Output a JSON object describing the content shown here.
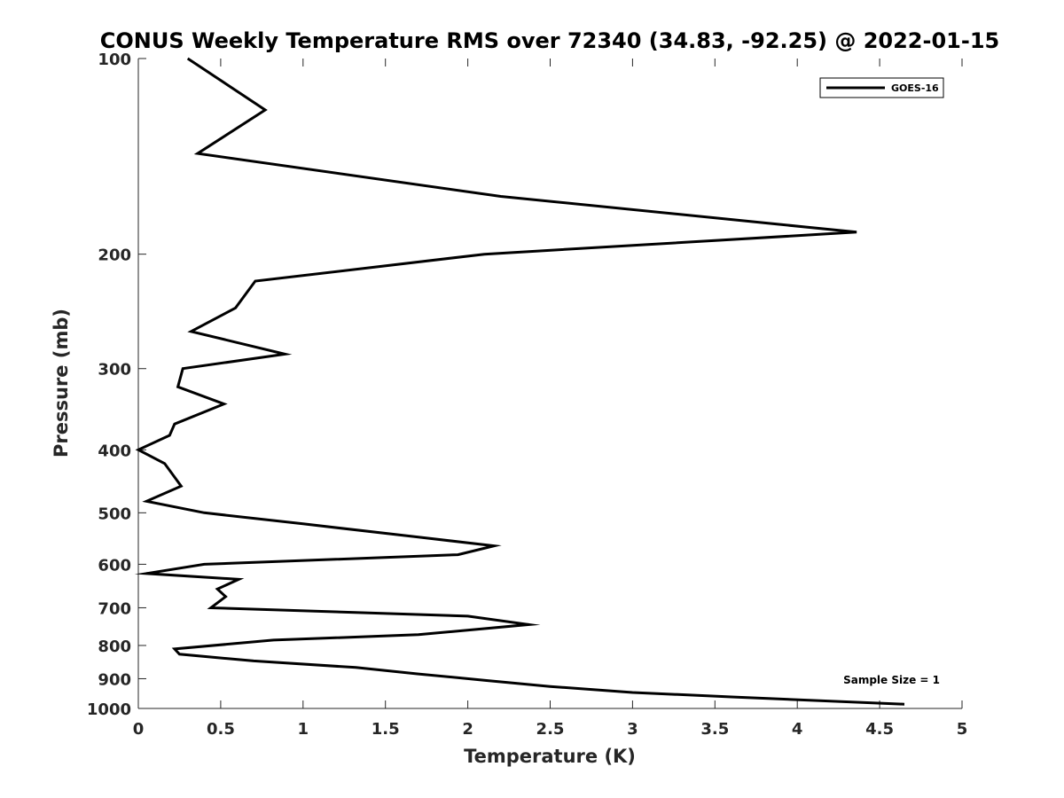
{
  "chart_data": {
    "type": "line",
    "title": "CONUS Weekly Temperature RMS over 72340 (34.83, -92.25) @ 2022-01-15",
    "xlabel": "Temperature (K)",
    "ylabel": "Pressure (mb)",
    "xlim": [
      0,
      5
    ],
    "ylim": [
      100,
      1000
    ],
    "y_scale": "log",
    "y_reversed": true,
    "x_ticks": [
      "0",
      "0.5",
      "1",
      "1.5",
      "2",
      "2.5",
      "3",
      "3.5",
      "4",
      "4.5",
      "5"
    ],
    "y_ticks": [
      "100",
      "200",
      "300",
      "400",
      "500",
      "600",
      "700",
      "800",
      "900",
      "1000"
    ],
    "grid": false,
    "legend_position": "top-right",
    "annotation": "Sample Size = 1",
    "series": [
      {
        "name": "GOES-16",
        "color": "#000000",
        "x": [
          0.3,
          0.77,
          0.36,
          2.2,
          4.36,
          2.1,
          0.71,
          0.59,
          0.32,
          0.89,
          0.27,
          0.24,
          0.52,
          0.22,
          0.19,
          0.0,
          0.16,
          0.26,
          0.05,
          0.4,
          1.0,
          1.7,
          2.16,
          1.94,
          0.4,
          0.05,
          0.61,
          0.48,
          0.53,
          0.44,
          2.0,
          2.37,
          1.7,
          0.82,
          0.22,
          0.25,
          0.7,
          1.32,
          1.7,
          2.1,
          2.5,
          3.0,
          3.6,
          4.65
        ],
        "y": [
          100,
          120,
          140,
          163,
          185,
          200,
          220,
          242,
          263,
          285,
          300,
          320,
          340,
          365,
          380,
          400,
          420,
          455,
          480,
          500,
          520,
          545,
          562,
          580,
          600,
          620,
          633,
          655,
          673,
          700,
          721,
          743,
          770,
          785,
          810,
          825,
          845,
          865,
          885,
          905,
          925,
          945,
          960,
          985
        ]
      }
    ]
  }
}
